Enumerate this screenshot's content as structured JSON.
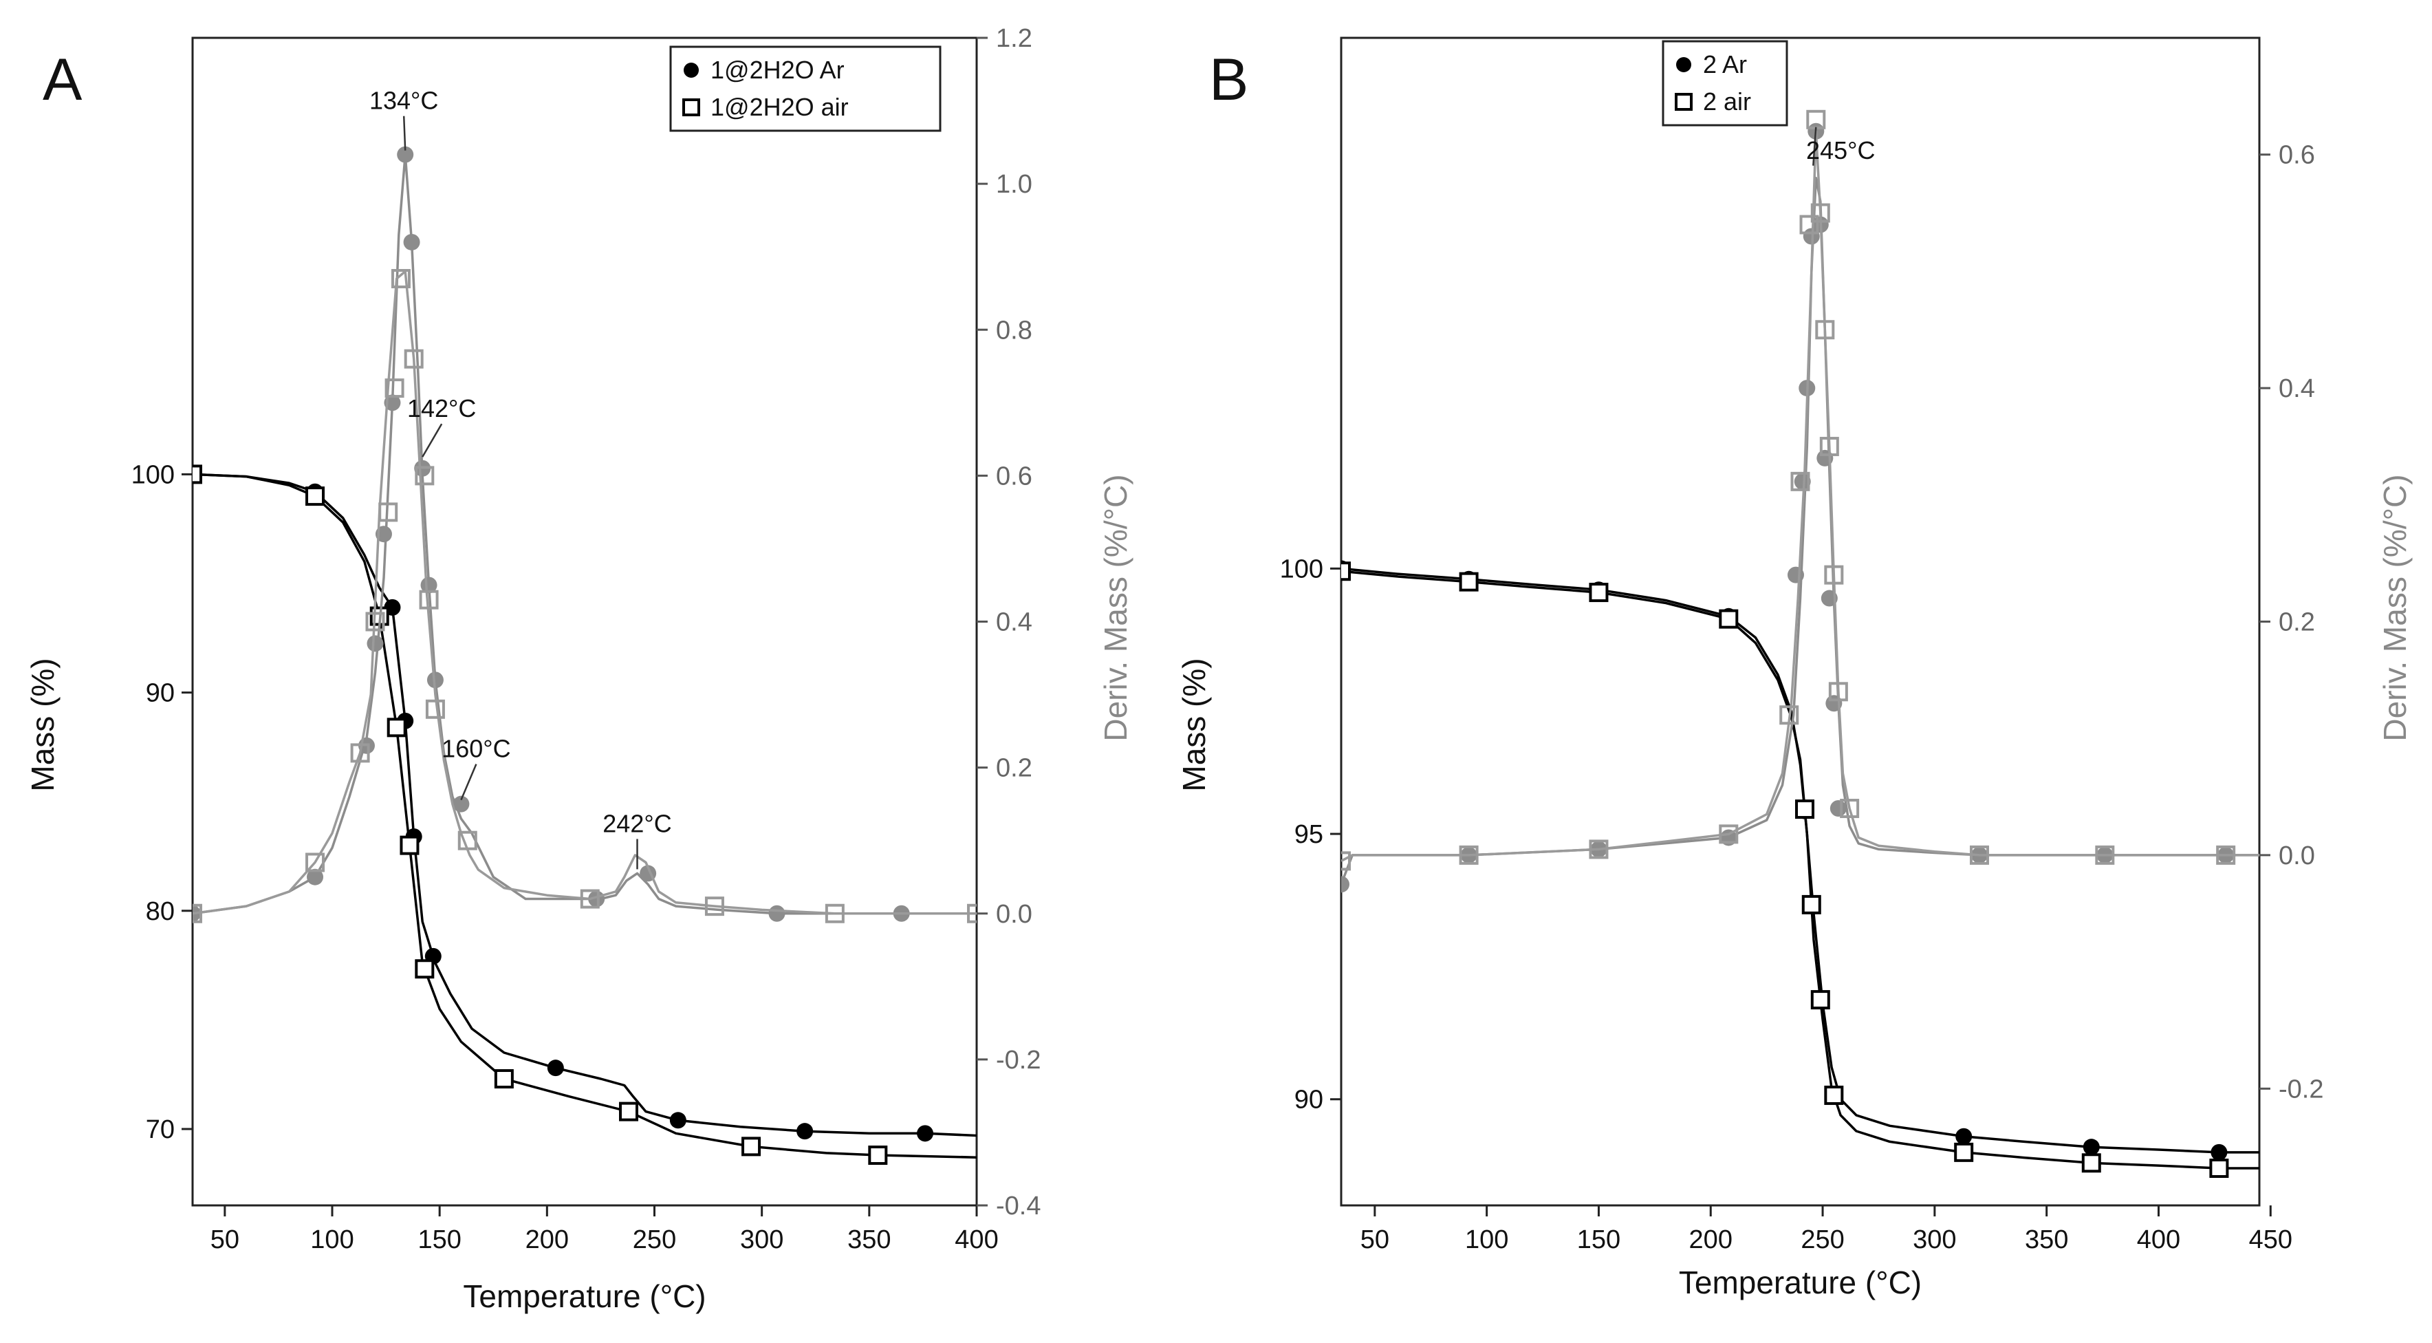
{
  "chart_data": [
    {
      "type": "line",
      "panel": "A",
      "xlabel": "Temperature (°C)",
      "ylabel": "Mass (%)",
      "y2label": "Deriv. Mass (%/°C)",
      "xlim": [
        35,
        400
      ],
      "ylim": [
        66.5,
        120
      ],
      "y2lim": [
        -0.4,
        1.2
      ],
      "x_ticks": [
        50,
        100,
        150,
        200,
        250,
        300,
        350,
        400
      ],
      "y_ticks": [
        70,
        80,
        90,
        100
      ],
      "y2_ticks": [
        -0.4,
        -0.2,
        0.0,
        0.2,
        0.4,
        0.6,
        0.8,
        1.0,
        1.2
      ],
      "y2_tick_labels": [
        "-0.4",
        "-0.2",
        "0.0",
        "0.2",
        "0.4",
        "0.6",
        "0.8",
        "1.0",
        "1.2"
      ],
      "grid": false,
      "legend": {
        "placement": "top-right",
        "entries": [
          {
            "marker": "filled-circle",
            "label": "1@2H2O  Ar"
          },
          {
            "marker": "open-square",
            "label": "1@2H2O air"
          }
        ]
      },
      "series": [
        {
          "name": "1@2H2O  Ar",
          "axis": "left",
          "color": "#000000",
          "marker": "circle-filled",
          "x": [
            35,
            60,
            80,
            92,
            105,
            115,
            122,
            128,
            134,
            138,
            142,
            148,
            155,
            165,
            180,
            204,
            225,
            236,
            240,
            246,
            261,
            290,
            320,
            350,
            376,
            400
          ],
          "y": [
            100,
            99.9,
            99.6,
            99.2,
            98.0,
            96.3,
            94.8,
            93.9,
            88.7,
            83.4,
            79.5,
            77.6,
            76.2,
            74.6,
            73.5,
            72.8,
            72.3,
            72.0,
            71.5,
            70.8,
            70.4,
            70.1,
            69.9,
            69.8,
            69.8,
            69.7
          ],
          "marker_x": [
            35,
            92,
            128,
            134,
            138,
            147,
            204,
            261,
            320,
            376
          ]
        },
        {
          "name": "1@2H2O air",
          "axis": "left",
          "color": "#000000",
          "marker": "square-open",
          "x": [
            35,
            60,
            80,
            92,
            105,
            115,
            122,
            130,
            136,
            142,
            150,
            160,
            180,
            210,
            238,
            260,
            295,
            330,
            354,
            400
          ],
          "y": [
            100,
            99.9,
            99.5,
            99.0,
            97.8,
            96.0,
            93.5,
            88.4,
            83.0,
            77.6,
            75.5,
            74.0,
            72.3,
            71.5,
            70.8,
            69.8,
            69.2,
            68.9,
            68.8,
            68.7
          ],
          "marker_x": [
            35,
            92,
            122,
            130,
            136,
            143,
            180,
            238,
            295,
            354
          ]
        },
        {
          "name": "1@2H2O  Ar",
          "axis": "right",
          "color": "#8c8c8c",
          "marker": "circle-filled",
          "x": [
            35,
            60,
            80,
            92,
            100,
            108,
            116,
            120,
            124,
            128,
            131,
            134,
            137,
            140,
            142,
            145,
            148,
            152,
            156,
            160,
            165,
            175,
            190,
            210,
            225,
            232,
            237,
            242,
            247,
            252,
            260,
            280,
            307,
            335,
            365,
            392,
            400
          ],
          "y": [
            0.0,
            0.01,
            0.03,
            0.05,
            0.09,
            0.16,
            0.24,
            0.33,
            0.46,
            0.7,
            0.93,
            1.04,
            0.92,
            0.74,
            0.6,
            0.45,
            0.32,
            0.22,
            0.16,
            0.13,
            0.11,
            0.05,
            0.02,
            0.02,
            0.02,
            0.025,
            0.045,
            0.055,
            0.04,
            0.02,
            0.01,
            0.005,
            0.0,
            0.0,
            0.0,
            0.0,
            0.0
          ],
          "marker_x": [
            35,
            92,
            116,
            120,
            124,
            128,
            134,
            137,
            142,
            145,
            148,
            160,
            223,
            247,
            307,
            365
          ],
          "marker_y": [
            0.0,
            0.05,
            0.23,
            0.37,
            0.52,
            0.7,
            1.04,
            0.92,
            0.61,
            0.45,
            0.32,
            0.15,
            0.02,
            0.055,
            0.0,
            0.0
          ]
        },
        {
          "name": "1@2H2O air",
          "axis": "right",
          "color": "#9a9a9a",
          "marker": "square-open",
          "x": [
            35,
            60,
            80,
            92,
            100,
            108,
            113,
            118,
            122,
            126,
            130,
            134,
            138,
            141,
            144,
            148,
            152,
            156,
            160,
            164,
            168,
            180,
            200,
            220,
            232,
            236,
            241,
            246,
            252,
            260,
            278,
            300,
            334,
            365,
            392,
            400
          ],
          "y": [
            0.0,
            0.01,
            0.03,
            0.07,
            0.11,
            0.18,
            0.22,
            0.3,
            0.55,
            0.72,
            0.87,
            0.88,
            0.76,
            0.6,
            0.44,
            0.3,
            0.21,
            0.15,
            0.11,
            0.08,
            0.06,
            0.035,
            0.025,
            0.02,
            0.03,
            0.05,
            0.08,
            0.07,
            0.03,
            0.015,
            0.01,
            0.005,
            0.0,
            0.0,
            0.0,
            0.0
          ],
          "marker_x": [
            35,
            92,
            113,
            120,
            126,
            129,
            132,
            138,
            143,
            145,
            148,
            163,
            220,
            278,
            334,
            400
          ],
          "marker_y": [
            0.0,
            0.07,
            0.22,
            0.4,
            0.55,
            0.72,
            0.87,
            0.76,
            0.6,
            0.43,
            0.28,
            0.1,
            0.02,
            0.01,
            0.0,
            0.0
          ]
        }
      ],
      "annotations": [
        {
          "text": "134°C",
          "x": 134,
          "y2": 1.04
        },
        {
          "text": "142°C",
          "x": 142,
          "y2": 0.62
        },
        {
          "text": "160°C",
          "x": 160,
          "y2": 0.15
        },
        {
          "text": "242°C",
          "x": 242,
          "y2": 0.055
        }
      ]
    },
    {
      "type": "line",
      "panel": "B",
      "xlabel": "Temperature (°C)",
      "ylabel": "Mass (%)",
      "y2label": "Deriv. Mass (%/°C)",
      "xlim": [
        35,
        445
      ],
      "ylim": [
        88,
        110
      ],
      "y2lim": [
        -0.3,
        0.7
      ],
      "x_ticks": [
        50,
        100,
        150,
        200,
        250,
        300,
        350,
        400,
        450
      ],
      "y_ticks": [
        90,
        95,
        100
      ],
      "y2_ticks": [
        -0.2,
        0.0,
        0.2,
        0.4,
        0.6
      ],
      "y2_tick_labels": [
        "-0.2",
        "0.0",
        "0.2",
        "0.4",
        "0.6"
      ],
      "grid": false,
      "legend": {
        "placement": "top-center",
        "entries": [
          {
            "marker": "filled-circle",
            "label": "2 Ar"
          },
          {
            "marker": "open-square",
            "label": "2 air"
          }
        ]
      },
      "series": [
        {
          "name": "2 Ar",
          "axis": "left",
          "color": "#000000",
          "marker": "circle-filled",
          "x": [
            35,
            60,
            92,
            120,
            150,
            180,
            208,
            220,
            230,
            236,
            240,
            243,
            246,
            250,
            254,
            258,
            265,
            280,
            313,
            340,
            370,
            400,
            427,
            445
          ],
          "y": [
            100,
            99.9,
            99.8,
            99.7,
            99.6,
            99.4,
            99.1,
            98.7,
            98.0,
            97.3,
            96.3,
            95.0,
            93.5,
            91.8,
            90.6,
            90.0,
            89.7,
            89.5,
            89.3,
            89.2,
            89.1,
            89.05,
            89.0,
            89.0
          ],
          "marker_x": [
            35,
            92,
            150,
            208,
            242,
            313,
            370,
            427
          ]
        },
        {
          "name": "2 air",
          "axis": "left",
          "color": "#000000",
          "marker": "square-open",
          "x": [
            35,
            60,
            92,
            120,
            150,
            180,
            208,
            220,
            230,
            236,
            240,
            243,
            246,
            250,
            254,
            258,
            265,
            280,
            313,
            340,
            370,
            400,
            427,
            445
          ],
          "y": [
            99.95,
            99.85,
            99.75,
            99.65,
            99.55,
            99.35,
            99.05,
            98.6,
            97.9,
            97.2,
            96.4,
            95.0,
            93.0,
            91.5,
            90.2,
            89.7,
            89.4,
            89.2,
            89.0,
            88.9,
            88.8,
            88.75,
            88.7,
            88.7
          ],
          "marker_x": [
            35,
            92,
            150,
            208,
            242,
            245,
            249,
            255,
            313,
            370,
            427
          ]
        },
        {
          "name": "2 Ar",
          "axis": "right",
          "color": "#8c8c8c",
          "marker": "circle-filled",
          "x": [
            35,
            40,
            60,
            92,
            150,
            208,
            225,
            232,
            237,
            240,
            243,
            245,
            247,
            249,
            251,
            253,
            255,
            257,
            259,
            262,
            266,
            275,
            300,
            320,
            376,
            430,
            445
          ],
          "y": [
            -0.025,
            0.0,
            0.0,
            0.0,
            0.005,
            0.015,
            0.03,
            0.06,
            0.12,
            0.22,
            0.35,
            0.5,
            0.58,
            0.56,
            0.45,
            0.33,
            0.22,
            0.13,
            0.06,
            0.025,
            0.01,
            0.005,
            0.002,
            0.0,
            0.0,
            0.0,
            0.0
          ],
          "marker_x": [
            35,
            92,
            150,
            208,
            238,
            241,
            243,
            245,
            247,
            249,
            251,
            253,
            255,
            257,
            320,
            376,
            430
          ],
          "marker_y": [
            -0.025,
            0.0,
            0.005,
            0.015,
            0.24,
            0.32,
            0.4,
            0.53,
            0.62,
            0.54,
            0.34,
            0.22,
            0.13,
            0.04,
            0.0,
            0.0,
            0.0
          ]
        },
        {
          "name": "2 air",
          "axis": "right",
          "color": "#9a9a9a",
          "marker": "square-open",
          "x": [
            35,
            40,
            60,
            92,
            150,
            208,
            225,
            232,
            236,
            239,
            242,
            245,
            247,
            249,
            251,
            253,
            255,
            257,
            259,
            262,
            266,
            275,
            300,
            320,
            376,
            430,
            445
          ],
          "y": [
            -0.005,
            0.0,
            0.0,
            0.0,
            0.005,
            0.018,
            0.035,
            0.07,
            0.13,
            0.22,
            0.33,
            0.5,
            0.62,
            0.55,
            0.45,
            0.35,
            0.24,
            0.14,
            0.07,
            0.04,
            0.015,
            0.008,
            0.003,
            0.0,
            0.0,
            0.0,
            0.0
          ],
          "marker_x": [
            35,
            92,
            150,
            208,
            235,
            240,
            244,
            247,
            249,
            251,
            253,
            255,
            257,
            262,
            320,
            376,
            430
          ],
          "marker_y": [
            -0.005,
            0.0,
            0.005,
            0.018,
            0.12,
            0.32,
            0.54,
            0.63,
            0.55,
            0.45,
            0.35,
            0.24,
            0.14,
            0.04,
            0.0,
            0.0,
            0.0
          ]
        }
      ],
      "annotations": [
        {
          "text": "245°C",
          "x": 247,
          "y2": 0.62
        }
      ]
    }
  ]
}
